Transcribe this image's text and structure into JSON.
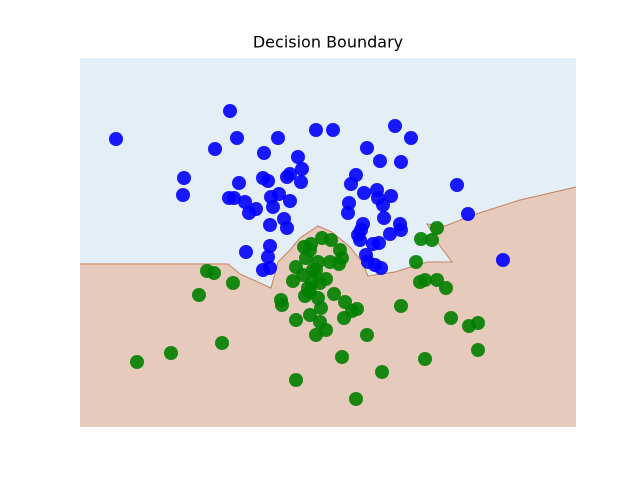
{
  "chart_data": {
    "type": "scatter",
    "title": "Decision Boundary",
    "xlim": [
      80,
      576
    ],
    "ylim": [
      53,
      422
    ],
    "region_colors": {
      "upper": "#e3eef6",
      "lower": "#e6cabb",
      "boundary": "#c8805c"
    },
    "boundary": {
      "x": [
        80,
        228,
        240,
        271,
        278,
        290,
        300,
        318,
        332,
        350,
        362,
        368,
        395,
        427,
        452,
        440,
        427,
        445,
        476,
        520,
        576
      ],
      "y": [
        216,
        216,
        206,
        192,
        218,
        230,
        242,
        254,
        248,
        233,
        218,
        204,
        208,
        218,
        218,
        234,
        256,
        254,
        266,
        280,
        293
      ]
    },
    "series": [
      {
        "color": "#0000ff",
        "x": [
          116,
          230,
          237,
          215,
          278,
          316,
          333,
          395,
          411,
          264,
          298,
          367,
          380,
          401,
          184,
          183,
          239,
          263,
          268,
          287,
          290,
          302,
          301,
          356,
          351,
          457,
          229,
          234,
          245,
          256,
          249,
          271,
          279,
          290,
          273,
          364,
          377,
          378,
          391,
          383,
          349,
          348,
          468,
          284,
          270,
          287,
          363,
          384,
          400,
          401,
          390,
          358,
          361,
          360,
          379,
          373,
          246,
          270,
          268,
          263,
          270,
          366,
          368,
          375,
          381,
          503
        ],
        "values": [
          341,
          369,
          342,
          331,
          342,
          350,
          350,
          354,
          342,
          327,
          323,
          332,
          319,
          318,
          302,
          285,
          297,
          302,
          299,
          303,
          306,
          311,
          298,
          305,
          296,
          295,
          282,
          282,
          278,
          271,
          267,
          283,
          286,
          279,
          273,
          287,
          290,
          282,
          284,
          275,
          277,
          267,
          266,
          261,
          255,
          252,
          256,
          262,
          256,
          250,
          246,
          245,
          250,
          240,
          237,
          236,
          228,
          234,
          223,
          210,
          212,
          225,
          218,
          215,
          212,
          220
        ]
      },
      {
        "color": "#008000",
        "x": [
          437,
          421,
          432,
          416,
          420,
          425,
          437,
          446,
          401,
          451,
          469,
          478,
          478,
          425,
          382,
          356,
          207,
          214,
          233,
          199,
          281,
          282,
          296,
          222,
          171,
          137,
          296,
          342,
          367,
          316,
          326,
          320,
          310,
          321,
          344,
          352,
          357,
          345,
          334,
          305,
          310,
          312,
          320,
          326,
          316,
          296,
          306,
          310,
          322,
          331,
          304,
          318,
          330,
          339,
          342,
          340,
          293,
          308,
          318,
          303,
          311,
          313
        ],
        "values": [
          252,
          241,
          240,
          218,
          198,
          200,
          200,
          192,
          174,
          162,
          154,
          157,
          130,
          121,
          108,
          81,
          209,
          207,
          197,
          185,
          180,
          175,
          160,
          137,
          127,
          118,
          100,
          123,
          145,
          145,
          150,
          158,
          165,
          172,
          162,
          169,
          171,
          178,
          186,
          184,
          188,
          198,
          197,
          201,
          210,
          213,
          222,
          230,
          242,
          240,
          233,
          218,
          218,
          216,
          222,
          230,
          199,
          192,
          182,
          205,
          236,
          210
        ]
      }
    ]
  }
}
